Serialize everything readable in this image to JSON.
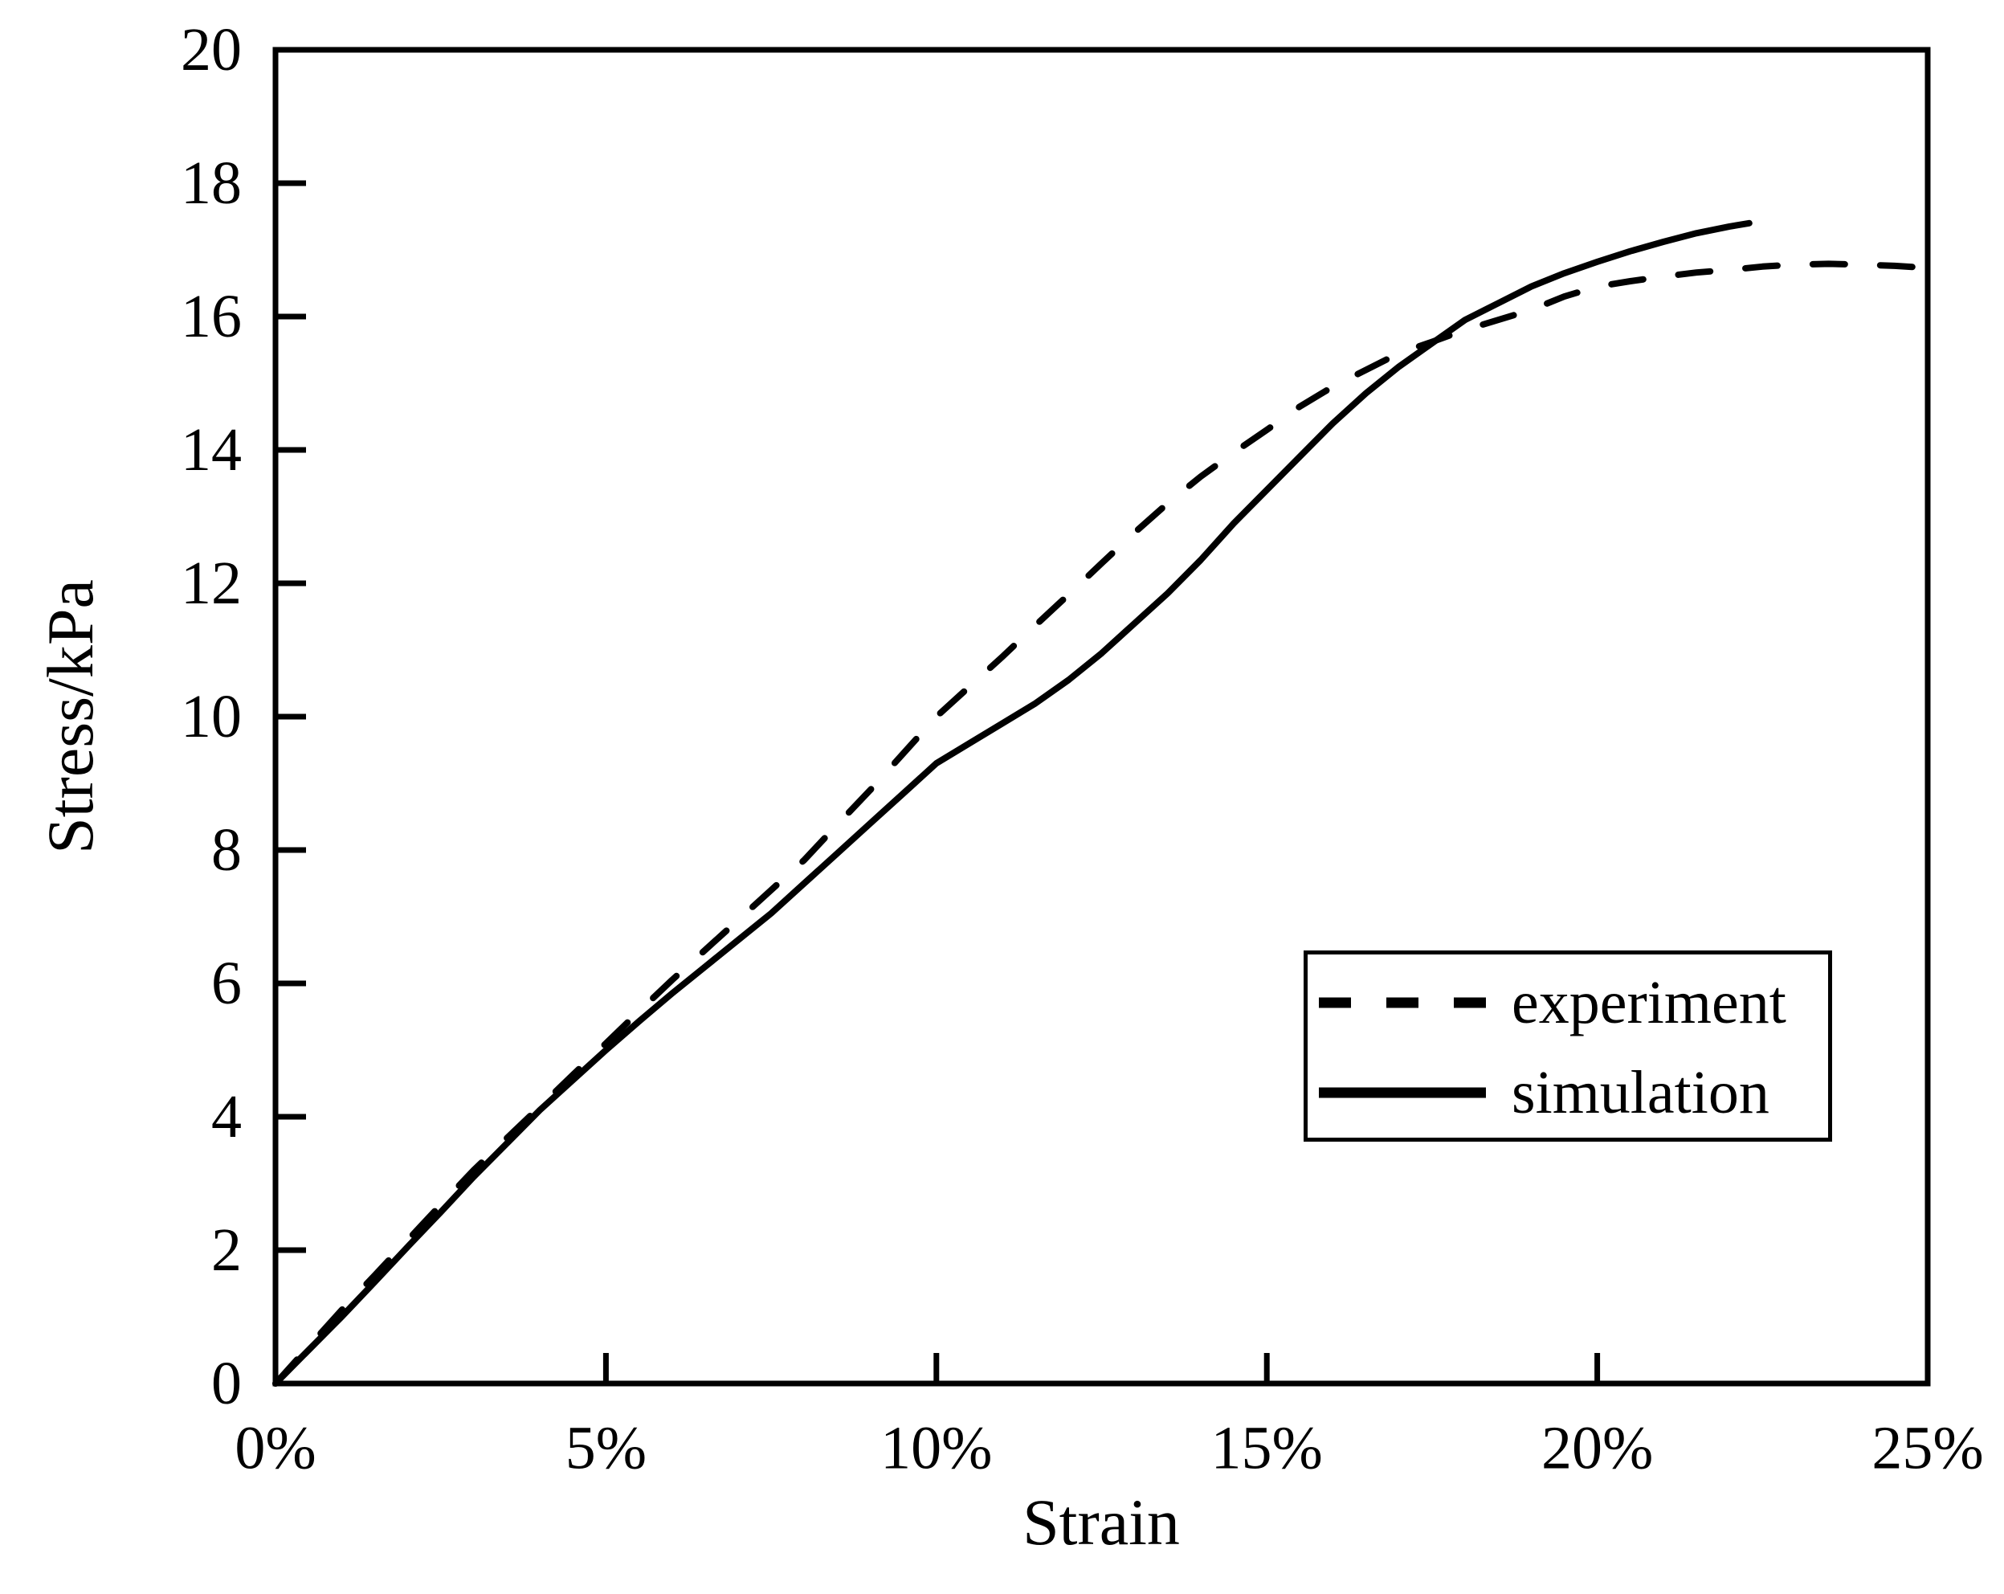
{
  "figure": {
    "background_color": "#ffffff",
    "ink_color": "#000000"
  },
  "chart_data": {
    "type": "line",
    "title": "",
    "xlabel": "Strain",
    "ylabel": "Stress/kPa",
    "x_unit": "percent strain",
    "y_unit": "kPa",
    "xlim": [
      0,
      25
    ],
    "ylim": [
      0,
      20
    ],
    "grid": false,
    "legend_position": "inside lower-right",
    "x_ticks": {
      "values": [
        0,
        5,
        10,
        15,
        20,
        25
      ],
      "labels": [
        "0%",
        "5%",
        "10%",
        "15%",
        "20%",
        "25%"
      ]
    },
    "y_ticks": {
      "values": [
        0,
        2,
        4,
        6,
        8,
        10,
        12,
        14,
        16,
        18,
        20
      ],
      "labels": [
        "0",
        "2",
        "4",
        "6",
        "8",
        "10",
        "12",
        "14",
        "16",
        "18",
        "20"
      ]
    },
    "series": [
      {
        "name": "experiment",
        "style": "dashed",
        "color": "#000000",
        "points": [
          [
            0,
            0
          ],
          [
            0.5,
            0.55
          ],
          [
            1,
            1.1
          ],
          [
            1.5,
            1.62
          ],
          [
            2,
            2.15
          ],
          [
            2.5,
            2.68
          ],
          [
            3,
            3.2
          ],
          [
            3.5,
            3.68
          ],
          [
            4,
            4.15
          ],
          [
            4.5,
            4.63
          ],
          [
            5,
            5.1
          ],
          [
            5.5,
            5.58
          ],
          [
            6,
            6.05
          ],
          [
            6.5,
            6.5
          ],
          [
            7,
            6.95
          ],
          [
            7.5,
            7.4
          ],
          [
            8,
            7.85
          ],
          [
            8.5,
            8.38
          ],
          [
            9,
            8.9
          ],
          [
            9.5,
            9.45
          ],
          [
            10,
            10.0
          ],
          [
            10.5,
            10.45
          ],
          [
            11,
            10.9
          ],
          [
            11.5,
            11.37
          ],
          [
            12,
            11.83
          ],
          [
            12.5,
            12.3
          ],
          [
            13,
            12.76
          ],
          [
            13.5,
            13.2
          ],
          [
            14,
            13.6
          ],
          [
            14.5,
            13.96
          ],
          [
            15,
            14.3
          ],
          [
            15.5,
            14.65
          ],
          [
            16,
            14.95
          ],
          [
            16.5,
            15.2
          ],
          [
            17,
            15.45
          ],
          [
            17.5,
            15.62
          ],
          [
            18,
            15.8
          ],
          [
            18.5,
            15.95
          ],
          [
            19,
            16.1
          ],
          [
            19.5,
            16.3
          ],
          [
            20,
            16.45
          ],
          [
            20.5,
            16.53
          ],
          [
            21,
            16.6
          ],
          [
            21.5,
            16.66
          ],
          [
            22,
            16.7
          ],
          [
            22.5,
            16.75
          ],
          [
            23,
            16.78
          ],
          [
            23.5,
            16.79
          ],
          [
            24,
            16.78
          ],
          [
            24.5,
            16.76
          ],
          [
            25,
            16.73
          ]
        ]
      },
      {
        "name": "simulation",
        "style": "solid",
        "color": "#000000",
        "points": [
          [
            0,
            0
          ],
          [
            0.5,
            0.5
          ],
          [
            1,
            1.0
          ],
          [
            1.5,
            1.52
          ],
          [
            2,
            2.05
          ],
          [
            2.5,
            2.57
          ],
          [
            3,
            3.1
          ],
          [
            3.5,
            3.6
          ],
          [
            4,
            4.1
          ],
          [
            4.5,
            4.55
          ],
          [
            5,
            5.0
          ],
          [
            5.5,
            5.43
          ],
          [
            6,
            5.85
          ],
          [
            6.5,
            6.25
          ],
          [
            7,
            6.65
          ],
          [
            7.5,
            7.05
          ],
          [
            8,
            7.5
          ],
          [
            8.5,
            7.95
          ],
          [
            9,
            8.4
          ],
          [
            9.5,
            8.85
          ],
          [
            10,
            9.3
          ],
          [
            10.5,
            9.6
          ],
          [
            11,
            9.9
          ],
          [
            11.5,
            10.2
          ],
          [
            12,
            10.55
          ],
          [
            12.5,
            10.95
          ],
          [
            13,
            11.4
          ],
          [
            13.5,
            11.85
          ],
          [
            14,
            12.35
          ],
          [
            14.5,
            12.9
          ],
          [
            15,
            13.4
          ],
          [
            15.5,
            13.9
          ],
          [
            16,
            14.4
          ],
          [
            16.5,
            14.85
          ],
          [
            17,
            15.25
          ],
          [
            17.5,
            15.6
          ],
          [
            18,
            15.95
          ],
          [
            18.5,
            16.2
          ],
          [
            19,
            16.45
          ],
          [
            19.5,
            16.65
          ],
          [
            20,
            16.82
          ],
          [
            20.5,
            16.98
          ],
          [
            21,
            17.12
          ],
          [
            21.5,
            17.25
          ],
          [
            22,
            17.35
          ],
          [
            22.3,
            17.4
          ]
        ]
      }
    ]
  }
}
